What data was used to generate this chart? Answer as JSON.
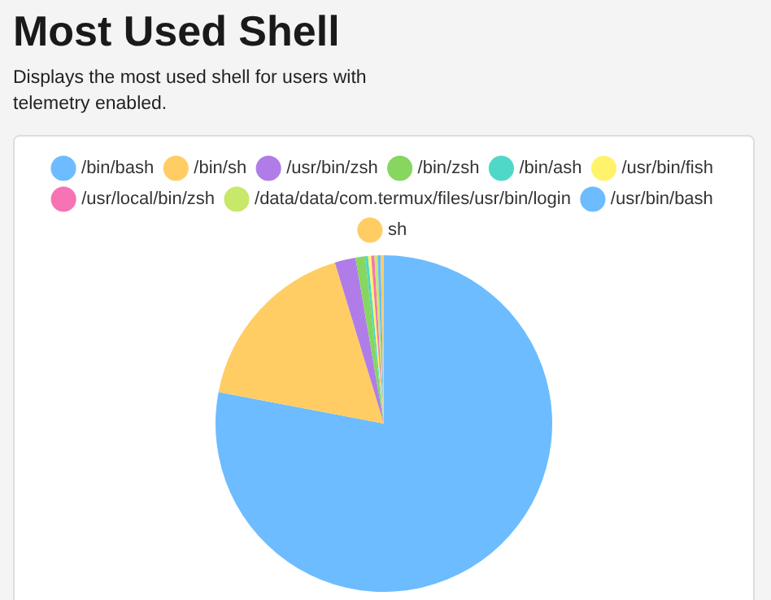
{
  "chart_data": {
    "type": "pie",
    "title": "Most Used Shell",
    "subtitle": "Displays the most used shell for users with telemetry enabled.",
    "categories": [
      "/bin/bash",
      "/bin/sh",
      "/usr/bin/zsh",
      "/bin/zsh",
      "/bin/ash",
      "/usr/bin/fish",
      "/usr/local/bin/zsh",
      "/data/data/com.termux/files/usr/bin/login",
      "/usr/bin/bash",
      "sh"
    ],
    "values": [
      78.0,
      17.3,
      2.0,
      0.9,
      0.3,
      0.3,
      0.3,
      0.3,
      0.3,
      0.3
    ],
    "colors": [
      "#6cbcff",
      "#ffcd64",
      "#b07ce8",
      "#86d65f",
      "#4fd8c8",
      "#fff36b",
      "#f774b4",
      "#c8e86a",
      "#6cbcff",
      "#ffcd64"
    ],
    "legend": "top"
  }
}
